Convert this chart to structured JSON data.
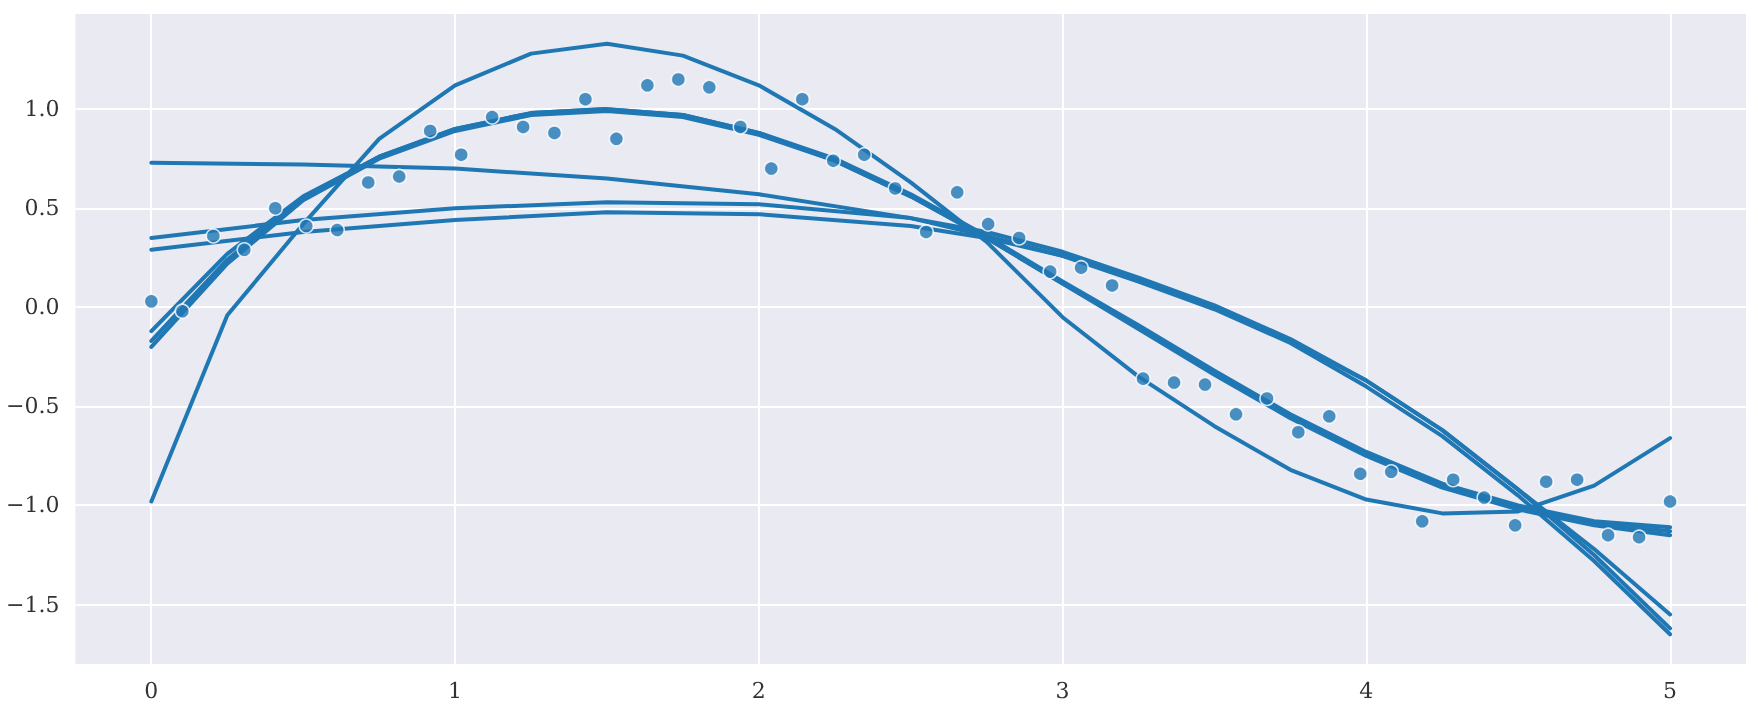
{
  "chart_data": {
    "type": "line",
    "xlim": [
      -0.25,
      5.25
    ],
    "ylim": [
      -1.8,
      1.48
    ],
    "xticks": [
      0,
      1,
      2,
      3,
      4,
      5
    ],
    "yticks": [
      {
        "value": -1.5,
        "label": "−1.5"
      },
      {
        "value": -1.0,
        "label": "−1.0"
      },
      {
        "value": -0.5,
        "label": "−0.5"
      },
      {
        "value": 0,
        "label": "0.0"
      },
      {
        "value": 0.5,
        "label": "0.5"
      },
      {
        "value": 1.0,
        "label": "1.0"
      }
    ],
    "grid": true,
    "line_style": "solid",
    "series": [
      {
        "type": "scatter",
        "marker": "circle",
        "color": "#1f77b4",
        "x": [
          0,
          0.102,
          0.204,
          0.306,
          0.408,
          0.51,
          0.612,
          0.714,
          0.816,
          0.918,
          1.02,
          1.122,
          1.224,
          1.327,
          1.429,
          1.531,
          1.633,
          1.735,
          1.837,
          1.939,
          2.041,
          2.143,
          2.245,
          2.347,
          2.449,
          2.551,
          2.653,
          2.755,
          2.857,
          2.959,
          3.061,
          3.163,
          3.265,
          3.367,
          3.469,
          3.571,
          3.673,
          3.776,
          3.878,
          3.98,
          4.082,
          4.184,
          4.286,
          4.388,
          4.49,
          4.592,
          4.694,
          4.796,
          4.898,
          5.0
        ],
        "values": [
          0.03,
          -0.02,
          0.36,
          0.29,
          0.5,
          0.41,
          0.39,
          0.63,
          0.66,
          0.89,
          0.77,
          0.96,
          0.91,
          0.88,
          1.05,
          0.85,
          1.12,
          1.15,
          1.11,
          0.91,
          0.7,
          1.05,
          0.74,
          0.77,
          0.6,
          0.38,
          0.58,
          0.42,
          0.35,
          0.18,
          0.2,
          0.11,
          -0.36,
          -0.38,
          -0.39,
          -0.54,
          -0.46,
          -0.63,
          -0.55,
          -0.84,
          -0.83,
          -1.08,
          -0.87,
          -0.96,
          -1.1,
          -0.88,
          -0.87,
          -1.15,
          -1.16,
          -0.98
        ]
      },
      {
        "type": "line",
        "marker": "none",
        "color": "#1f77b4",
        "x": [
          0,
          0.25,
          0.5,
          0.75,
          1.0,
          1.25,
          1.5,
          1.75,
          2.0,
          2.25,
          2.5,
          2.75,
          3.0,
          3.25,
          3.5,
          3.75,
          4.0,
          4.25,
          4.5,
          4.75,
          5.0
        ],
        "values": [
          -0.98,
          -0.04,
          0.42,
          0.85,
          1.12,
          1.28,
          1.33,
          1.27,
          1.12,
          0.9,
          0.63,
          0.33,
          -0.05,
          -0.35,
          -0.6,
          -0.82,
          -0.97,
          -1.04,
          -1.03,
          -0.9,
          -0.66
        ]
      },
      {
        "type": "line",
        "marker": "none",
        "color": "#1f77b4",
        "x": [
          0,
          0.25,
          0.5,
          0.75,
          1.0,
          1.25,
          1.5,
          1.75,
          2.0,
          2.25,
          2.5,
          2.75,
          3.0,
          3.25,
          3.5,
          3.75,
          4.0,
          4.25,
          4.5,
          4.75,
          5.0
        ],
        "values": [
          -0.12,
          0.27,
          0.56,
          0.76,
          0.9,
          0.98,
          1.0,
          0.97,
          0.88,
          0.75,
          0.57,
          0.36,
          0.13,
          -0.09,
          -0.32,
          -0.54,
          -0.73,
          -0.89,
          -1.0,
          -1.08,
          -1.11
        ]
      },
      {
        "type": "line",
        "marker": "none",
        "color": "#1f77b4",
        "x": [
          0,
          0.25,
          0.5,
          0.75,
          1.0,
          1.25,
          1.5,
          1.75,
          2.0,
          2.25,
          2.5,
          2.75,
          3.0,
          3.25,
          3.5,
          3.75,
          4.0,
          4.25,
          4.5,
          4.75,
          5.0
        ],
        "values": [
          -0.17,
          0.24,
          0.55,
          0.76,
          0.9,
          0.98,
          1.0,
          0.97,
          0.88,
          0.74,
          0.56,
          0.35,
          0.12,
          -0.1,
          -0.33,
          -0.55,
          -0.74,
          -0.9,
          -1.01,
          -1.09,
          -1.13
        ]
      },
      {
        "type": "line",
        "marker": "none",
        "color": "#1f77b4",
        "x": [
          0,
          0.25,
          0.5,
          0.75,
          1.0,
          1.25,
          1.5,
          1.75,
          2.0,
          2.25,
          2.5,
          2.75,
          3.0,
          3.25,
          3.5,
          3.75,
          4.0,
          4.25,
          4.5,
          4.75,
          5.0
        ],
        "values": [
          -0.2,
          0.22,
          0.54,
          0.75,
          0.89,
          0.97,
          0.99,
          0.96,
          0.87,
          0.74,
          0.56,
          0.35,
          0.12,
          -0.11,
          -0.34,
          -0.56,
          -0.75,
          -0.91,
          -1.02,
          -1.1,
          -1.15
        ]
      },
      {
        "type": "line",
        "marker": "none",
        "color": "#1f77b4",
        "x": [
          0,
          0.5,
          1.0,
          1.5,
          2.0,
          2.5,
          2.75,
          3.0,
          3.25,
          3.5,
          3.75,
          4.0,
          4.25,
          4.5,
          4.75,
          5.0
        ],
        "values": [
          0.73,
          0.72,
          0.7,
          0.65,
          0.57,
          0.45,
          0.36,
          0.26,
          0.14,
          0.0,
          -0.17,
          -0.37,
          -0.62,
          -0.92,
          -1.25,
          -1.62
        ]
      },
      {
        "type": "line",
        "marker": "none",
        "color": "#1f77b4",
        "x": [
          0,
          0.5,
          1.0,
          1.5,
          2.0,
          2.5,
          2.75,
          3.0,
          3.25,
          3.5,
          3.75,
          4.0,
          4.25,
          4.5,
          4.75,
          5.0
        ],
        "values": [
          0.35,
          0.44,
          0.5,
          0.53,
          0.52,
          0.45,
          0.38,
          0.28,
          0.15,
          0.01,
          -0.16,
          -0.37,
          -0.62,
          -0.92,
          -1.22,
          -1.55
        ]
      },
      {
        "type": "line",
        "marker": "none",
        "color": "#1f77b4",
        "x": [
          0,
          0.5,
          1.0,
          1.5,
          2.0,
          2.5,
          2.75,
          3.0,
          3.25,
          3.5,
          3.75,
          4.0,
          4.25,
          4.5,
          4.75,
          5.0
        ],
        "values": [
          0.29,
          0.38,
          0.44,
          0.48,
          0.47,
          0.41,
          0.35,
          0.26,
          0.13,
          -0.01,
          -0.18,
          -0.4,
          -0.65,
          -0.95,
          -1.28,
          -1.65
        ]
      }
    ]
  }
}
